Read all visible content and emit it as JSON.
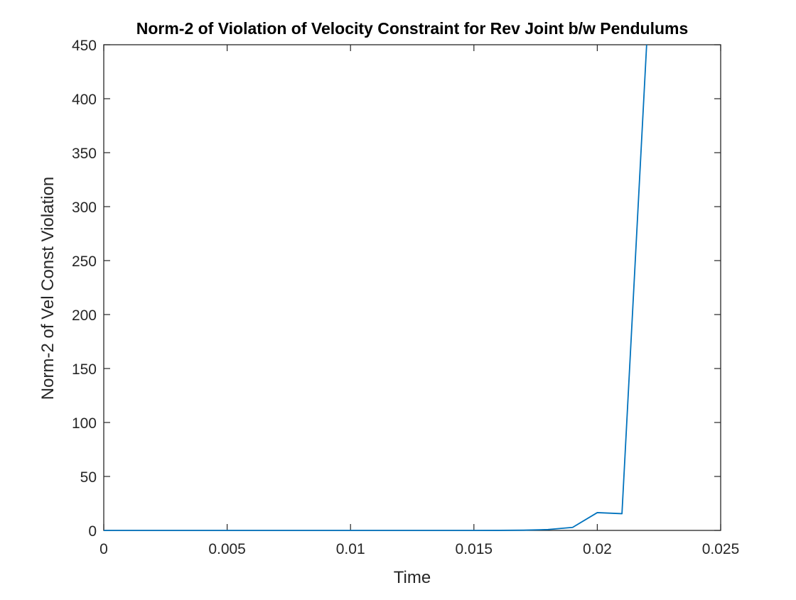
{
  "chart_data": {
    "type": "line",
    "title": "Norm-2 of Violation of Velocity Constraint for Rev Joint b/w Pendulums",
    "xlabel": "Time",
    "ylabel": "Norm-2 of Vel Const Violation",
    "xlim": [
      0,
      0.025
    ],
    "ylim": [
      0,
      450
    ],
    "xticks": [
      0,
      0.005,
      0.01,
      0.015,
      0.02,
      0.025
    ],
    "xtick_labels": [
      "0",
      "0.005",
      "0.01",
      "0.015",
      "0.02",
      "0.025"
    ],
    "yticks": [
      0,
      50,
      100,
      150,
      200,
      250,
      300,
      350,
      400,
      450
    ],
    "ytick_labels": [
      "0",
      "50",
      "100",
      "150",
      "200",
      "250",
      "300",
      "350",
      "400",
      "450"
    ],
    "grid": false,
    "series": [
      {
        "color": "#0072BD",
        "x": [
          0,
          0.001,
          0.002,
          0.003,
          0.004,
          0.005,
          0.006,
          0.007,
          0.008,
          0.009,
          0.01,
          0.011,
          0.012,
          0.013,
          0.014,
          0.015,
          0.016,
          0.017,
          0.018,
          0.019,
          0.02,
          0.021,
          0.022
        ],
        "y": [
          0,
          0,
          0,
          0,
          0,
          0,
          0,
          0,
          0,
          0,
          0,
          0,
          0,
          0,
          0,
          0,
          0.05,
          0.2,
          0.8,
          2.8,
          16.5,
          15.5,
          450
        ]
      }
    ]
  }
}
